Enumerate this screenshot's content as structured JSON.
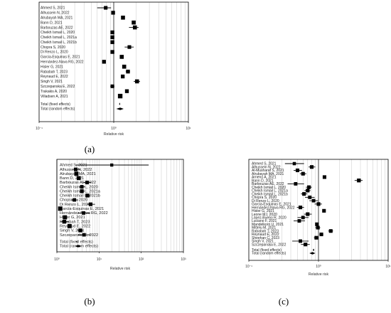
{
  "figure": {
    "captions": [
      "(a)",
      "(b)",
      "(c)"
    ]
  },
  "chart_data": [
    {
      "type": "forest",
      "panel": "(a)",
      "xlabel": "Relative risk",
      "xscale": "log",
      "xlim": [
        0.1,
        10
      ],
      "xticks": [
        "10⁻¹",
        "10⁰",
        "10¹"
      ],
      "reference_line": 1,
      "grid": true,
      "studies": [
        {
          "label": "Ahmed S, 2021",
          "rr": 0.78,
          "lo": 0.6,
          "hi": 0.92,
          "w": 0.5
        },
        {
          "label": "Alhussein N, 2022",
          "rr": 0.98,
          "lo": 0.94,
          "hi": 1.02,
          "w": 0.55
        },
        {
          "label": "Alrubayah MA, 2021",
          "rr": 1.33,
          "lo": 1.28,
          "hi": 1.38,
          "w": 0.6
        },
        {
          "label": "Bann D, 2021",
          "rr": 1.85,
          "lo": 1.8,
          "hi": 1.9,
          "w": 0.6
        },
        {
          "label": "Barbouzas AE, 2022",
          "rr": 1.92,
          "lo": 1.6,
          "hi": 2.15,
          "w": 0.6
        },
        {
          "label": "Cheikh Ismail L, 2020",
          "rr": 0.96,
          "lo": 0.92,
          "hi": 1.0,
          "w": 0.55
        },
        {
          "label": "Cheikh Ismail L, 2021a",
          "rr": 0.96,
          "lo": 0.92,
          "hi": 1.0,
          "w": 0.55
        },
        {
          "label": "Cheikh Ismail L, 2021b",
          "rr": 0.96,
          "lo": 0.92,
          "hi": 1.0,
          "w": 0.55
        },
        {
          "label": "Chopra S, 2020",
          "rr": 1.62,
          "lo": 1.4,
          "hi": 1.85,
          "w": 0.5
        },
        {
          "label": "Di Renzo L, 2020",
          "rr": 0.96,
          "lo": 0.92,
          "hi": 1.0,
          "w": 0.55
        },
        {
          "label": "Garcia-Esquinas E, 2021",
          "rr": 1.28,
          "lo": 1.24,
          "hi": 1.32,
          "w": 0.6
        },
        {
          "label": "Hernández-Nava RG, 2022",
          "rr": 0.74,
          "lo": 0.7,
          "hi": 0.78,
          "w": 0.55
        },
        {
          "label": "Hisler G, 2021",
          "rr": 1.38,
          "lo": 1.34,
          "hi": 1.42,
          "w": 0.6
        },
        {
          "label": "Rababah T, 2023",
          "rr": 1.55,
          "lo": 1.45,
          "hi": 1.65,
          "w": 0.55
        },
        {
          "label": "Reynaud E, 2022",
          "rr": 1.32,
          "lo": 1.28,
          "hi": 1.36,
          "w": 0.55
        },
        {
          "label": "Singh V, 2021",
          "rr": 2.05,
          "lo": 1.85,
          "hi": 2.25,
          "w": 0.6
        },
        {
          "label": "Szczepanska E, 2022",
          "rr": 0.96,
          "lo": 0.9,
          "hi": 1.02,
          "w": 0.5
        },
        {
          "label": "Trakakis A, 2020",
          "rr": 1.5,
          "lo": 1.45,
          "hi": 1.55,
          "w": 0.55
        },
        {
          "label": "Villadsen A, 2021",
          "rr": 1.22,
          "lo": 1.18,
          "hi": 1.26,
          "w": 0.75
        }
      ],
      "pooled": [
        {
          "label": "Total (fixed effects)",
          "rr": 1.2,
          "lo": 1.18,
          "hi": 1.22
        },
        {
          "label": "Total (random effects)",
          "rr": 1.22,
          "lo": 1.08,
          "hi": 1.36
        }
      ]
    },
    {
      "type": "forest",
      "panel": "(b)",
      "xlabel": "Relative risk",
      "xscale": "log",
      "xlim": [
        1,
        1000
      ],
      "xticks": [
        "10⁰",
        "10¹",
        "10²",
        "10³"
      ],
      "reference_line": 1,
      "grid": true,
      "studies": [
        {
          "label": "Ahmed S, 2021",
          "rr": 20,
          "lo": 2.8,
          "hi": 150,
          "w": 0.35
        },
        {
          "label": "Alhussein N, 2022",
          "rr": 2.8,
          "lo": 2.4,
          "hi": 3.6,
          "w": 0.5
        },
        {
          "label": "Alrubayah MA, 2021",
          "rr": 2.9,
          "lo": 2.7,
          "hi": 3.1,
          "w": 0.65
        },
        {
          "label": "Bann D, 2021",
          "rr": 3.3,
          "lo": 3.2,
          "hi": 3.4,
          "w": 0.6
        },
        {
          "label": "Barbouzas AE, 2022",
          "rr": 5.2,
          "lo": 4.3,
          "hi": 6.5,
          "w": 0.5
        },
        {
          "label": "Cheikh Ismail L, 2020",
          "rr": 3.9,
          "lo": 3.4,
          "hi": 4.6,
          "w": 0.5
        },
        {
          "label": "Cheikh Ismail L, 2021a",
          "rr": 3.9,
          "lo": 3.6,
          "hi": 4.5,
          "w": 0.55
        },
        {
          "label": "Cheikh Ismail L, 2021b",
          "rr": 5.3,
          "lo": 4.8,
          "hi": 6.2,
          "w": 0.55
        },
        {
          "label": "Chopra S, 2020",
          "rr": 2.6,
          "lo": 2.2,
          "hi": 3.2,
          "w": 0.45
        },
        {
          "label": "Di Renzo L, 2020",
          "rr": 6.3,
          "lo": 5.2,
          "hi": 8.0,
          "w": 0.5
        },
        {
          "label": "Garcia-Esquinas E, 2021",
          "rr": 1.2,
          "lo": 1.15,
          "hi": 1.25,
          "w": 0.7
        },
        {
          "label": "Hernández-Nava RG, 2022",
          "rr": 4.3,
          "lo": 3.2,
          "hi": 6.1,
          "w": 0.45
        },
        {
          "label": "Hisler G, 2021",
          "rr": 1.55,
          "lo": 1.45,
          "hi": 1.65,
          "w": 0.65
        },
        {
          "label": "Rababah T, 2023",
          "rr": 1.5,
          "lo": 1.2,
          "hi": 1.9,
          "w": 0.55
        },
        {
          "label": "Reynaud E, 2022",
          "rr": 2.0,
          "lo": 1.9,
          "hi": 2.1,
          "w": 0.65
        },
        {
          "label": "Singh V, 2021",
          "rr": 3.6,
          "lo": 3.1,
          "hi": 4.2,
          "w": 0.55
        },
        {
          "label": "Szczepanska E, 2022",
          "rr": 4.4,
          "lo": 3.2,
          "hi": 6.2,
          "w": 0.45
        }
      ],
      "pooled": [
        {
          "label": "Total (fixed effects)",
          "rr": 3.0,
          "lo": 2.9,
          "hi": 3.1
        },
        {
          "label": "Total (random effects)",
          "rr": 3.2,
          "lo": 2.7,
          "hi": 3.8
        }
      ]
    },
    {
      "type": "forest",
      "panel": "(c)",
      "xlabel": "Relative risk",
      "xscale": "log",
      "xlim": [
        0.1,
        10
      ],
      "xticks": [
        "10⁻¹",
        "10⁰",
        "10¹"
      ],
      "reference_line": 1,
      "grid": true,
      "studies": [
        {
          "label": "Ahmed S, 2021",
          "rr": 0.45,
          "lo": 0.33,
          "hi": 0.62,
          "w": 0.4
        },
        {
          "label": "Alhussein N, 2022",
          "rr": 0.8,
          "lo": 0.72,
          "hi": 0.9,
          "w": 0.5
        },
        {
          "label": "Al-Musharaf S, 2021",
          "rr": 0.5,
          "lo": 0.44,
          "hi": 0.58,
          "w": 0.5
        },
        {
          "label": "Alrubayah MA, 2021",
          "rr": 0.6,
          "lo": 0.54,
          "hi": 0.67,
          "w": 0.5
        },
        {
          "label": "Arneno A, 2021",
          "rr": 1.22,
          "lo": 1.18,
          "hi": 1.26,
          "w": 0.5
        },
        {
          "label": "Bann D, 2021",
          "rr": 3.8,
          "lo": 3.3,
          "hi": 4.3,
          "w": 0.55
        },
        {
          "label": "Barbouzas AE, 2022",
          "rr": 0.47,
          "lo": 0.36,
          "hi": 0.62,
          "w": 0.45
        },
        {
          "label": "Cheikh Ismail L, 2020",
          "rr": 0.73,
          "lo": 0.66,
          "hi": 0.8,
          "w": 0.5
        },
        {
          "label": "Cheikh Ismail L, 2021a",
          "rr": 0.7,
          "lo": 0.63,
          "hi": 0.77,
          "w": 0.5
        },
        {
          "label": "Cheikh Ismail L, 2021b",
          "rr": 0.62,
          "lo": 0.56,
          "hi": 0.69,
          "w": 0.5
        },
        {
          "label": "Chopra S, 2020",
          "rr": 0.75,
          "lo": 0.64,
          "hi": 0.88,
          "w": 0.45
        },
        {
          "label": "Di Renzo L, 2020",
          "rr": 0.85,
          "lo": 0.74,
          "hi": 0.98,
          "w": 0.45
        },
        {
          "label": "Garcia-Esquinas E, 2021",
          "rr": 1.0,
          "lo": 0.88,
          "hi": 1.12,
          "w": 0.5
        },
        {
          "label": "Hernández-Nava RG, 2022",
          "rr": 0.55,
          "lo": 0.49,
          "hi": 0.62,
          "w": 0.5
        },
        {
          "label": "Hisler G, 2021",
          "rr": 1.2,
          "lo": 1.15,
          "hi": 1.25,
          "w": 0.5
        },
        {
          "label": "Leone MJ, 2020",
          "rr": 0.7,
          "lo": 0.62,
          "hi": 0.8,
          "w": 0.5
        },
        {
          "label": "López-Bueno R, 2020",
          "rr": 0.6,
          "lo": 0.5,
          "hi": 0.72,
          "w": 0.45
        },
        {
          "label": "Luciano F, 2021",
          "rr": 0.53,
          "lo": 0.44,
          "hi": 0.64,
          "w": 0.45
        },
        {
          "label": "Mandelkorn U, 2021",
          "rr": 0.95,
          "lo": 0.9,
          "hi": 1.0,
          "w": 0.5
        },
        {
          "label": "Mittelu M, 2021",
          "rr": 0.98,
          "lo": 0.9,
          "hi": 1.06,
          "w": 0.5
        },
        {
          "label": "Rababah T, 2023",
          "rr": 1.5,
          "lo": 1.38,
          "hi": 1.62,
          "w": 0.5
        },
        {
          "label": "Reynaud E, 2022",
          "rr": 1.1,
          "lo": 1.03,
          "hi": 1.17,
          "w": 0.5
        },
        {
          "label": "Sheehan C, 2023",
          "rr": 0.93,
          "lo": 0.86,
          "hi": 1.0,
          "w": 0.5
        },
        {
          "label": "Singh V, 2021",
          "rr": 0.55,
          "lo": 0.42,
          "hi": 0.72,
          "w": 0.45
        },
        {
          "label": "Szczepanska E, 2022",
          "rr": 0.65,
          "lo": 0.56,
          "hi": 0.75,
          "w": 0.5
        }
      ],
      "pooled": [
        {
          "label": "Total (fixed effects)",
          "rr": 0.85,
          "lo": 0.83,
          "hi": 0.87
        },
        {
          "label": "Total (random effects)",
          "rr": 0.82,
          "lo": 0.74,
          "hi": 0.9
        }
      ]
    }
  ]
}
